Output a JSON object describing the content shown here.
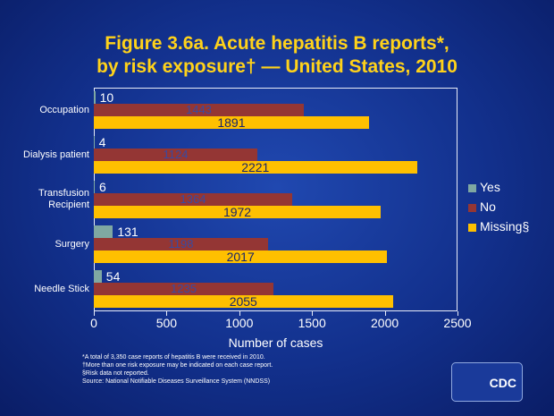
{
  "chart_data": {
    "type": "barh",
    "title": "Figure 3.6a. Acute hepatitis B reports*,",
    "subtitle": "by risk exposure† — United States, 2010",
    "categories": [
      "Occupation",
      "Dialysis patient",
      "Transfusion Recipient",
      "Surgery",
      "Needle Stick"
    ],
    "series": [
      {
        "name": "Yes",
        "color": "#7fa8a2",
        "values": [
          10,
          4,
          6,
          131,
          54
        ]
      },
      {
        "name": "No",
        "color": "#943634",
        "values": [
          1443,
          1124,
          1364,
          1198,
          1235
        ]
      },
      {
        "name": "Missing§",
        "color": "#ffc000",
        "values": [
          1891,
          2221,
          1972,
          2017,
          2055
        ]
      }
    ],
    "xlim": [
      0,
      2500
    ],
    "xticks": [
      0,
      500,
      1000,
      1500,
      2000,
      2500
    ],
    "xlabel": "Number of cases",
    "legend": "right",
    "notes": [
      "*A total of 3,350 case reports of hepatitis B were received in 2010.",
      "†More than one risk exposure may be indicated on each case report.",
      "§Risk data not reported.",
      "Source: National Notifiable Diseases Surveillance System (NNDSS)"
    ],
    "logo": "CDC"
  }
}
